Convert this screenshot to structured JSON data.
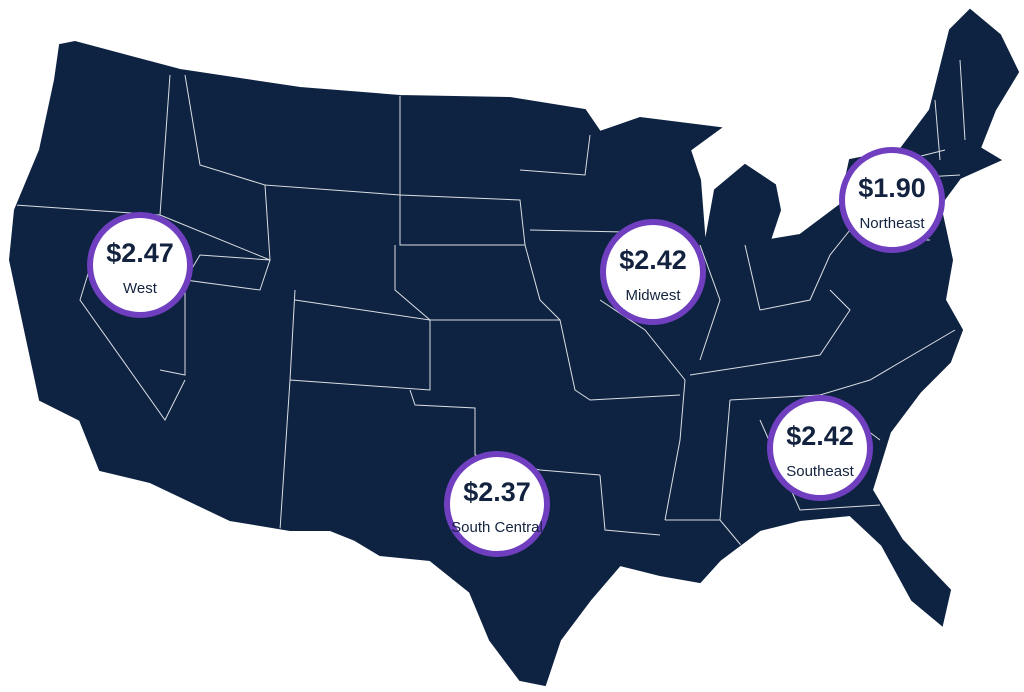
{
  "regions": [
    {
      "name": "West",
      "price": "$2.47"
    },
    {
      "name": "Midwest",
      "price": "$2.42"
    },
    {
      "name": "Northeast",
      "price": "$1.90"
    },
    {
      "name": "Southeast",
      "price": "$2.42"
    },
    {
      "name": "South Central",
      "price": "$2.37"
    }
  ]
}
